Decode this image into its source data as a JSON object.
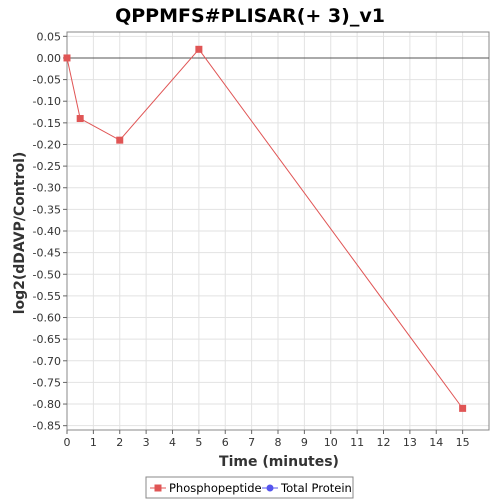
{
  "chart_data": {
    "type": "line",
    "title": "QPPMFS#PLISAR(+ 3)_v1",
    "xlabel": "Time (minutes)",
    "ylabel": "log2(dDAVP/Control)",
    "xlim": [
      0,
      16
    ],
    "ylim": [
      -0.86,
      0.06
    ],
    "x_ticks": [
      0,
      1,
      2,
      3,
      4,
      5,
      6,
      7,
      8,
      9,
      10,
      11,
      12,
      13,
      14,
      15
    ],
    "y_ticks": [
      0.05,
      0.0,
      -0.05,
      -0.1,
      -0.15,
      -0.2,
      -0.25,
      -0.3,
      -0.35,
      -0.4,
      -0.45,
      -0.5,
      -0.55,
      -0.6,
      -0.65,
      -0.7,
      -0.75,
      -0.8,
      -0.85
    ],
    "y_tick_labels": [
      "0.05",
      "0.00",
      "-0.05",
      "-0.10",
      "-0.15",
      "-0.20",
      "-0.25",
      "-0.30",
      "-0.35",
      "-0.40",
      "-0.45",
      "-0.50",
      "-0.55",
      "-0.60",
      "-0.65",
      "-0.70",
      "-0.75",
      "-0.80",
      "-0.85"
    ],
    "grid": true,
    "legend_position": "bottom",
    "series": [
      {
        "name": "Phosphopeptide",
        "color": "#e05555",
        "marker": "square",
        "x": [
          0,
          0.5,
          2,
          5,
          15
        ],
        "y": [
          0.0,
          -0.14,
          -0.19,
          0.02,
          -0.81
        ]
      },
      {
        "name": "Total Protein",
        "color": "#5555ee",
        "marker": "circle",
        "x": [],
        "y": []
      }
    ]
  }
}
